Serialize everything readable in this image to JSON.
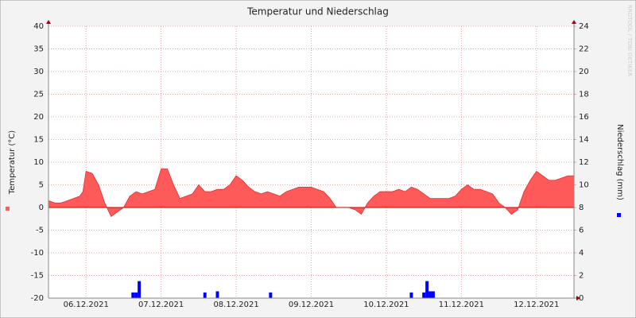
{
  "chart_data": {
    "type": "area_bar",
    "title": "Temperatur und Niederschlag",
    "ylabel": "Temperatur (°C)",
    "y2label": "Niederschlag (mm)",
    "watermark": "RRDTOOL / TOBI OETIKER",
    "xlim": [
      0,
      168
    ],
    "xticks": [
      {
        "value": 12,
        "label": "06.12.2021"
      },
      {
        "value": 36,
        "label": "07.12.2021"
      },
      {
        "value": 60,
        "label": "08.12.2021"
      },
      {
        "value": 84,
        "label": "09.12.2021"
      },
      {
        "value": 108,
        "label": "10.12.2021"
      },
      {
        "value": 132,
        "label": "11.12.2021"
      },
      {
        "value": 156,
        "label": "12.12.2021"
      }
    ],
    "ylim": [
      -20,
      40
    ],
    "yticks": [
      -20,
      -15,
      -10,
      -5,
      0,
      5,
      10,
      15,
      20,
      25,
      30,
      35,
      40
    ],
    "y2lim": [
      0,
      24
    ],
    "y2ticks": [
      0,
      2,
      4,
      6,
      8,
      10,
      12,
      14,
      16,
      18,
      20,
      22,
      24
    ],
    "grid": true,
    "series": [
      {
        "kind": "area",
        "color": "#ff5a5a",
        "x": [
          0,
          2,
          4,
          6,
          8,
          10,
          11,
          12,
          14,
          16,
          18,
          20,
          22,
          24,
          26,
          28,
          30,
          32,
          34,
          36,
          38,
          40,
          42,
          44,
          46,
          48,
          50,
          52,
          54,
          56,
          58,
          60,
          62,
          64,
          66,
          68,
          70,
          72,
          74,
          76,
          78,
          80,
          82,
          84,
          86,
          88,
          90,
          92,
          94,
          96,
          98,
          100,
          102,
          104,
          106,
          108,
          110,
          112,
          114,
          116,
          118,
          120,
          122,
          124,
          126,
          128,
          130,
          132,
          134,
          136,
          138,
          140,
          142,
          144,
          146,
          148,
          150,
          152,
          154,
          156,
          158,
          160,
          162,
          164,
          166,
          168
        ],
        "values": [
          1.5,
          1,
          1,
          1.5,
          2,
          2.5,
          3.5,
          8,
          7.5,
          5,
          1,
          -2,
          -1,
          0,
          2.5,
          3.5,
          3,
          3.5,
          4,
          8.5,
          8.5,
          5,
          2,
          2.5,
          3,
          5,
          3.5,
          3.5,
          4,
          4,
          5,
          7,
          6,
          4.5,
          3.5,
          3,
          3.5,
          3,
          2.5,
          3.5,
          4,
          4.5,
          4.5,
          4.5,
          4,
          3.5,
          2,
          0,
          0,
          0,
          -0.5,
          -1.5,
          1,
          2.5,
          3.5,
          3.5,
          3.5,
          4,
          3.5,
          4.5,
          4,
          3,
          2,
          2,
          2,
          2,
          2.5,
          4,
          5,
          4,
          4,
          3.5,
          3,
          1,
          0,
          -1.5,
          -0.5,
          3.5,
          6,
          8,
          7,
          6,
          6,
          6.5,
          7,
          7
        ]
      },
      {
        "kind": "bar",
        "axis": "y2",
        "color": "#0000ff",
        "x": [
          27,
          28,
          29,
          50,
          54,
          71,
          116,
          120,
          121,
          122,
          123
        ],
        "values": [
          0.5,
          0.5,
          1.5,
          0.5,
          0.6,
          0.5,
          0.5,
          0.5,
          1.5,
          0.6,
          0.6
        ]
      }
    ]
  }
}
